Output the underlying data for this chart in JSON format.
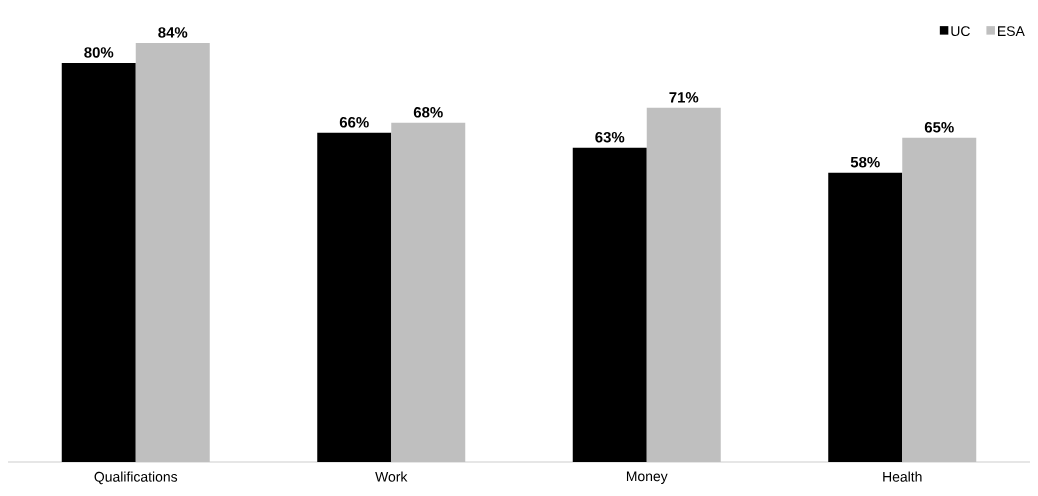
{
  "chart_data": {
    "type": "bar",
    "categories": [
      "Qualifications",
      "Work",
      "Money",
      "Health"
    ],
    "series": [
      {
        "name": "UC",
        "color": "#000000",
        "values": [
          80,
          66,
          63,
          58
        ],
        "value_labels": [
          "80%",
          "66%",
          "63%",
          "58%"
        ]
      },
      {
        "name": "ESA",
        "color": "#bfbfbf",
        "values": [
          84,
          68,
          71,
          65
        ],
        "value_labels": [
          "84%",
          "68%",
          "71%",
          "65%"
        ]
      }
    ],
    "legend": "top right"
  }
}
